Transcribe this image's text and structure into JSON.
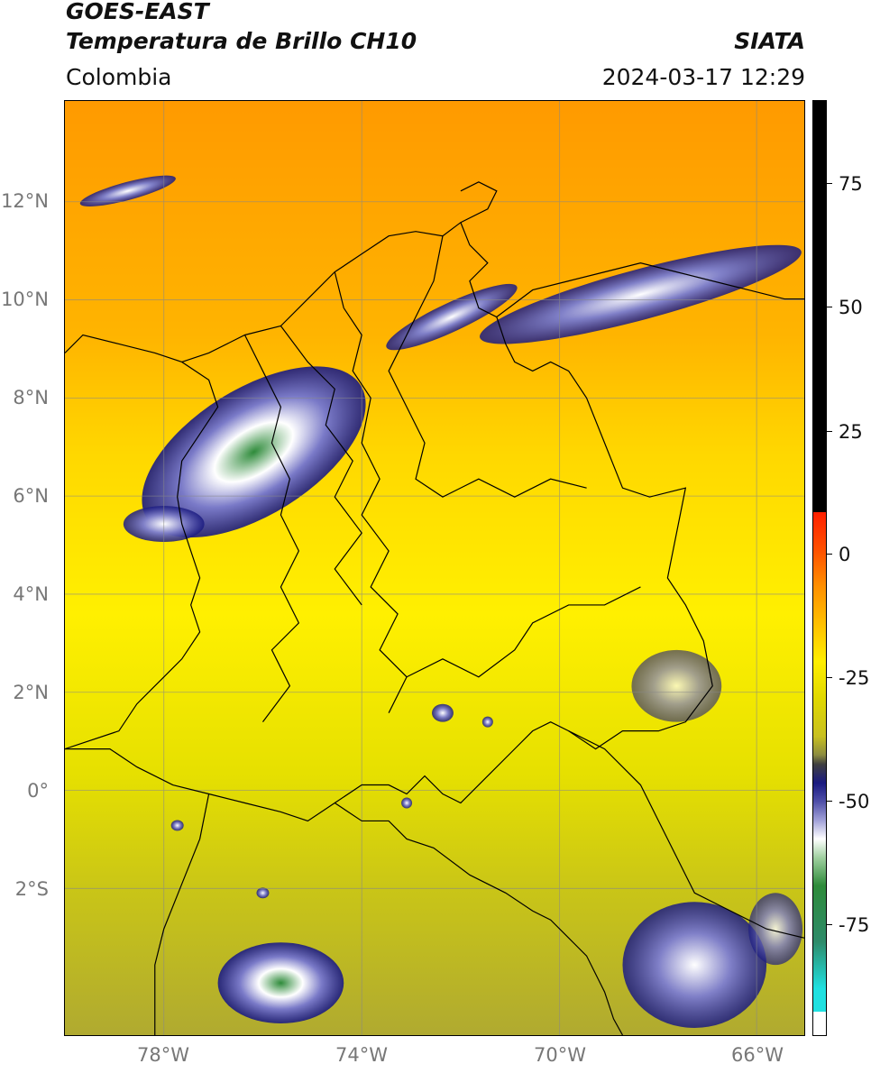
{
  "header": {
    "satellite": "GOES-EAST",
    "product": "Temperatura de Brillo CH10",
    "source": "SIATA",
    "region": "Colombia",
    "datetime": "2024-03-17 12:29"
  },
  "map": {
    "lat_labels": [
      "12°N",
      "10°N",
      "8°N",
      "6°N",
      "4°N",
      "2°N",
      "0°",
      "2°S"
    ],
    "lon_labels": [
      "78°W",
      "74°W",
      "70°W",
      "66°W"
    ]
  },
  "colorbar": {
    "ticks": [
      "75",
      "50",
      "25",
      "0",
      "-25",
      "-50",
      "-75"
    ],
    "colors": {
      "black": "#000000",
      "red": "#ff2000",
      "orange": "#ff9000",
      "yellow": "#ffee00",
      "olive": "#c8c020",
      "navy": "#1a1a80",
      "white": "#ffffff",
      "green": "#2e8b3a",
      "cyan": "#20e0e0"
    }
  }
}
